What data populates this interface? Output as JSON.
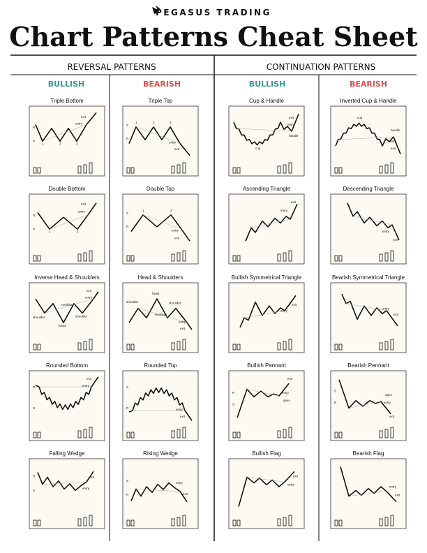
{
  "brand": "PEGASUS TRADING",
  "title": "Chart Patterns Cheat Sheet",
  "sections": [
    "REVERSAL PATTERNS",
    "CONTINUATION PATTERNS"
  ],
  "columns": [
    {
      "header": "BULLISH",
      "patterns": [
        {
          "name": "Triple Bottom",
          "labels": [
            "exit",
            "entry",
            "R",
            "S",
            "1",
            "2",
            "3"
          ]
        },
        {
          "name": "Double Bottom",
          "labels": [
            "exit",
            "entry",
            "R",
            "S",
            "1",
            "2"
          ]
        },
        {
          "name": "Inverse Head & Shoulders",
          "labels": [
            "neckline",
            "shoulder",
            "head",
            "shoulder",
            "exit",
            "entry"
          ]
        },
        {
          "name": "Rounded Bottom",
          "labels": [
            "exit",
            "entry",
            "R",
            "S"
          ]
        },
        {
          "name": "Falling Wedge",
          "labels": [
            "exit",
            "entry",
            "R",
            "S"
          ]
        }
      ]
    },
    {
      "header": "BEARISH",
      "patterns": [
        {
          "name": "Triple Top",
          "labels": [
            "exit",
            "entry",
            "R",
            "S",
            "1",
            "2",
            "3"
          ]
        },
        {
          "name": "Double Top",
          "labels": [
            "exit",
            "entry",
            "R",
            "S",
            "1",
            "2"
          ]
        },
        {
          "name": "Head & Shoulders",
          "labels": [
            "neckline",
            "shoulder",
            "head",
            "shoulder",
            "exit",
            "entry"
          ]
        },
        {
          "name": "Rounded Top",
          "labels": [
            "exit",
            "entry",
            "R",
            "S"
          ]
        },
        {
          "name": "Rising Wedge",
          "labels": [
            "exit",
            "entry",
            "R",
            "S"
          ]
        }
      ]
    },
    {
      "header": "BULLISH",
      "patterns": [
        {
          "name": "Cup & Handle",
          "labels": [
            "cup",
            "handle",
            "exit",
            "entry"
          ]
        },
        {
          "name": "Ascending Triangle",
          "labels": [
            "exit",
            "entry"
          ]
        },
        {
          "name": "Bullish Symmetrical Triangle",
          "labels": [
            "exit",
            "entry"
          ]
        },
        {
          "name": "Bullish Pennant",
          "labels": [
            "exit",
            "entry",
            "apex",
            "R",
            "S"
          ]
        },
        {
          "name": "Bullish Flag",
          "labels": [
            "exit",
            "entry"
          ]
        }
      ]
    },
    {
      "header": "BEARISH",
      "patterns": [
        {
          "name": "Inverted Cup & Handle",
          "labels": [
            "cup",
            "handle",
            "exit",
            "entry"
          ]
        },
        {
          "name": "Descending Triangle",
          "labels": [
            "exit",
            "entry"
          ]
        },
        {
          "name": "Bearish Symmetrical Triangle",
          "labels": [
            "exit",
            "entry"
          ]
        },
        {
          "name": "Bearish Pennant",
          "labels": [
            "exit",
            "entry",
            "apex",
            "R",
            "S"
          ]
        },
        {
          "name": "Bearish Flag",
          "labels": [
            "exit",
            "entry"
          ]
        }
      ]
    }
  ]
}
